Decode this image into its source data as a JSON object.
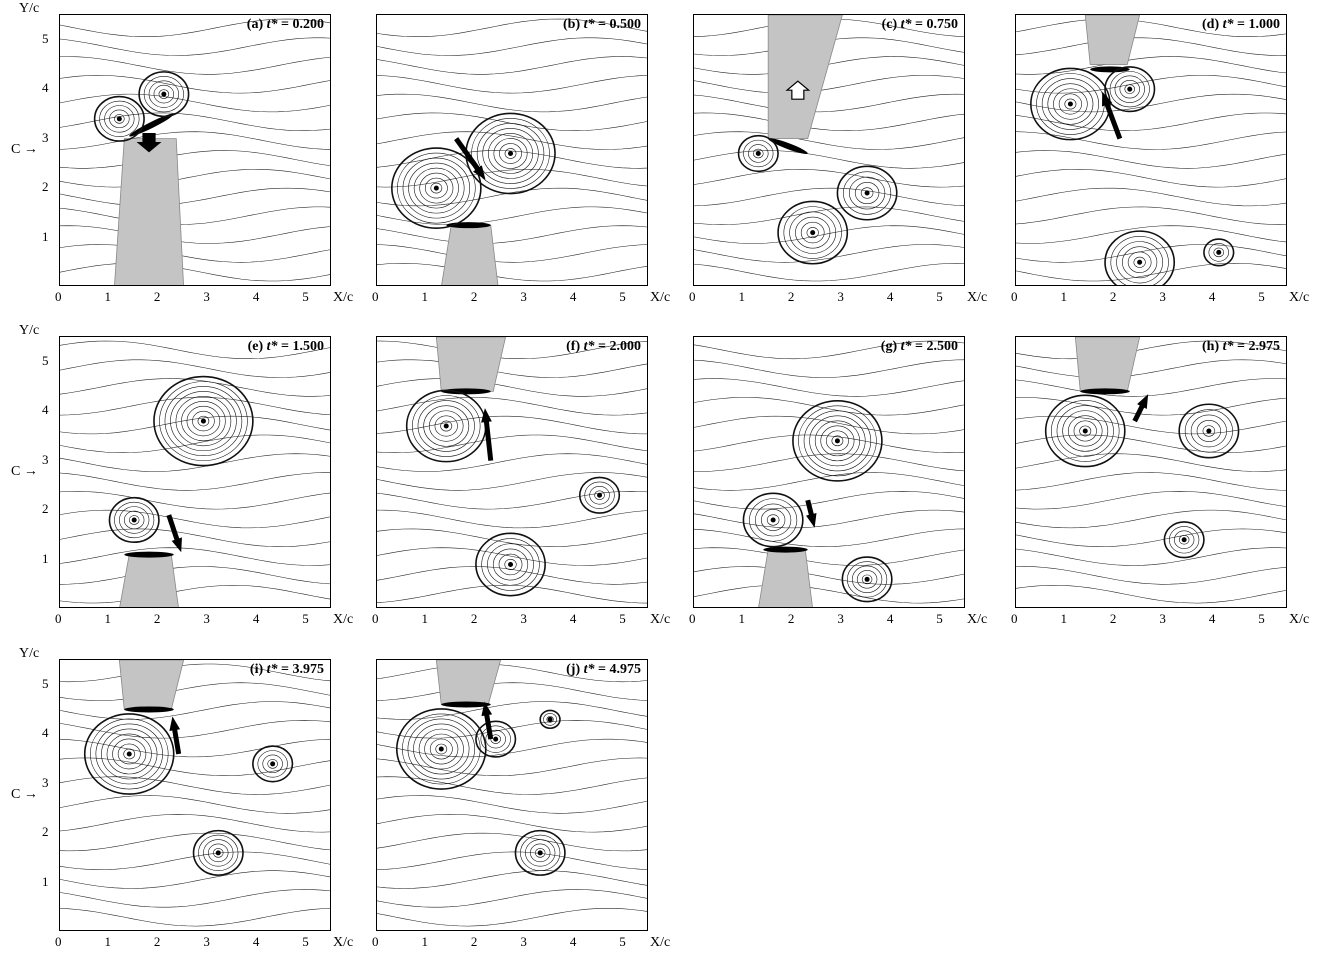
{
  "figure": {
    "x_axis_label": "X/c",
    "y_axis_label": "Y/c",
    "inflow_marker": "C",
    "x_ticks": [
      "0",
      "1",
      "2",
      "3",
      "4",
      "5"
    ],
    "y_ticks": [
      "1",
      "2",
      "3",
      "4",
      "5"
    ]
  },
  "panels": [
    {
      "id": "a",
      "prefix": "(a) ",
      "t_symbol": "t*",
      "eq": " = ",
      "value": "0.200"
    },
    {
      "id": "b",
      "prefix": "(b) ",
      "t_symbol": "t*",
      "eq": " = ",
      "value": "0.500"
    },
    {
      "id": "c",
      "prefix": "(c) ",
      "t_symbol": "t*",
      "eq": " = ",
      "value": "0.750"
    },
    {
      "id": "d",
      "prefix": "(d) ",
      "t_symbol": "t*",
      "eq": " = ",
      "value": "1.000"
    },
    {
      "id": "e",
      "prefix": "(e) ",
      "t_symbol": "t*",
      "eq": " = ",
      "value": "1.500"
    },
    {
      "id": "f",
      "prefix": "(f) ",
      "t_symbol": "t*",
      "eq": " = ",
      "value": "2.000"
    },
    {
      "id": "g",
      "prefix": "(g) ",
      "t_symbol": "t*",
      "eq": " = ",
      "value": "2.500"
    },
    {
      "id": "h",
      "prefix": "(h) ",
      "t_symbol": "t*",
      "eq": " = ",
      "value": "2.975"
    },
    {
      "id": "i",
      "prefix": "(i) ",
      "t_symbol": "t*",
      "eq": " = ",
      "value": "3.975"
    },
    {
      "id": "j",
      "prefix": "(j) ",
      "t_symbol": "t*",
      "eq": " = ",
      "value": "4.975"
    }
  ]
}
